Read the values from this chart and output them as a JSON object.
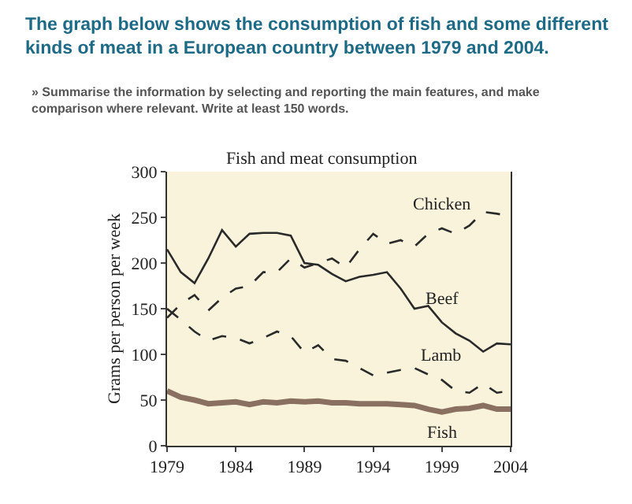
{
  "chart_data": {
    "type": "line",
    "title": "Fish and meat consumption",
    "annotations": [
      "The graph below shows the consumption of fish and some different kinds of meat in a European country between 1979 and 2004.",
      "» Summarise the information by selecting and reporting the main features, and make comparison where relevant. Write at least 150 words."
    ],
    "ylabel": "Grams per person per week",
    "x": [
      1979,
      1980,
      1981,
      1982,
      1983,
      1984,
      1985,
      1986,
      1987,
      1988,
      1989,
      1990,
      1991,
      1992,
      1993,
      1994,
      1995,
      1996,
      1997,
      1998,
      1999,
      2000,
      2001,
      2002,
      2003,
      2004
    ],
    "series": [
      {
        "name": "Chicken",
        "color": "#2a2a2a",
        "line_style": "dashed",
        "values": [
          140,
          155,
          165,
          148,
          162,
          172,
          175,
          190,
          190,
          205,
          195,
          200,
          205,
          195,
          215,
          232,
          221,
          225,
          218,
          232,
          238,
          232,
          241,
          256,
          254,
          251
        ]
      },
      {
        "name": "Beef",
        "color": "#2a2a2a",
        "line_style": "solid",
        "values": [
          215,
          190,
          178,
          205,
          236,
          218,
          232,
          233,
          233,
          230,
          200,
          198,
          188,
          180,
          185,
          187,
          190,
          172,
          150,
          153,
          135,
          123,
          115,
          103,
          112,
          111
        ]
      },
      {
        "name": "Lamb",
        "color": "#2a2a2a",
        "line_style": "dashed",
        "values": [
          150,
          138,
          125,
          115,
          120,
          118,
          112,
          118,
          125,
          120,
          102,
          110,
          95,
          93,
          85,
          77,
          80,
          83,
          85,
          78,
          72,
          60,
          58,
          68,
          58,
          60
        ]
      },
      {
        "name": "Fish",
        "color": "#8a7060",
        "line_style": "solid",
        "values": [
          60,
          53,
          50,
          46,
          47,
          48,
          45,
          48,
          47,
          49,
          48,
          49,
          47,
          47,
          46,
          46,
          46,
          45,
          44,
          40,
          37,
          40,
          41,
          44,
          40,
          40
        ]
      }
    ],
    "xlim": [
      1979,
      2004
    ],
    "xticks": [
      1979,
      1984,
      1989,
      1994,
      1999,
      2004
    ],
    "ylim": [
      0,
      300
    ],
    "yticks": [
      0,
      50,
      100,
      150,
      200,
      250,
      300
    ],
    "grid": false,
    "legend": false,
    "marker": "none"
  }
}
